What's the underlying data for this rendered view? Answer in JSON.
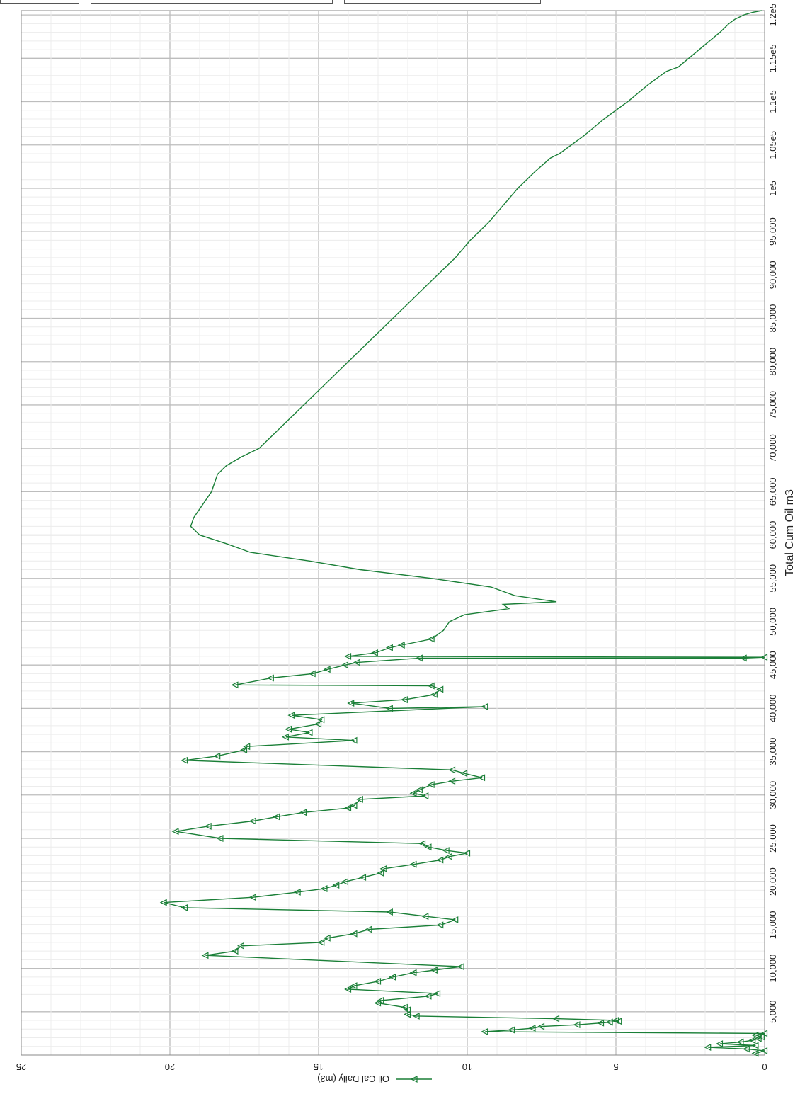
{
  "chart_data": {
    "type": "line",
    "orientation": "rotated-90",
    "xlabel": "Total Cum Oil m3",
    "ylabel": "",
    "xlim": [
      0,
      120500
    ],
    "ylim": [
      0,
      25
    ],
    "x_ticks": [
      "5,000",
      "10,000",
      "15,000",
      "20,000",
      "25,000",
      "30,000",
      "35,000",
      "40,000",
      "45,000",
      "50,000",
      "55,000",
      "60,000",
      "65,000",
      "70,000",
      "75,000",
      "80,000",
      "85,000",
      "90,000",
      "95,000",
      "1e5",
      "1.05e5",
      "1.1e5",
      "1.15e5",
      "1.2e5"
    ],
    "y_ticks": [
      "0",
      "5",
      "10",
      "15",
      "20",
      "25"
    ],
    "grid": true,
    "legend": "bottom",
    "series": [
      {
        "name": "Oil Cal Daily (m3)",
        "color": "#1a7f37",
        "marker": "triangle",
        "points": [
          [
            200,
            0.3
          ],
          [
            500,
            0.0
          ],
          [
            700,
            0.6
          ],
          [
            900,
            1.9
          ],
          [
            1100,
            0.3
          ],
          [
            1300,
            1.5
          ],
          [
            1500,
            0.8
          ],
          [
            1700,
            0.4
          ],
          [
            1900,
            0.2
          ],
          [
            2100,
            0.1
          ],
          [
            2300,
            0.3
          ],
          [
            2500,
            0.0
          ],
          [
            2700,
            9.4
          ],
          [
            2900,
            8.5
          ],
          [
            3100,
            7.8
          ],
          [
            3300,
            7.5
          ],
          [
            3500,
            6.3
          ],
          [
            3700,
            5.5
          ],
          [
            3800,
            5.2
          ],
          [
            3900,
            4.9
          ],
          [
            4000,
            5.0
          ],
          [
            4200,
            7.0
          ],
          [
            4500,
            11.7
          ],
          [
            4700,
            12.0
          ],
          [
            5200,
            12.0
          ],
          [
            5500,
            12.1
          ],
          [
            6000,
            13.0
          ],
          [
            6300,
            12.9
          ],
          [
            6800,
            11.3
          ],
          [
            7100,
            11.0
          ],
          [
            7600,
            14.0
          ],
          [
            8000,
            13.8
          ],
          [
            8500,
            13.0
          ],
          [
            9000,
            12.5
          ],
          [
            9500,
            11.8
          ],
          [
            9800,
            11.1
          ],
          [
            10200,
            10.2
          ],
          [
            11500,
            18.8
          ],
          [
            12000,
            17.8
          ],
          [
            12600,
            17.6
          ],
          [
            13000,
            14.9
          ],
          [
            13500,
            14.7
          ],
          [
            14000,
            13.8
          ],
          [
            14500,
            13.3
          ],
          [
            15000,
            10.9
          ],
          [
            15600,
            10.4
          ],
          [
            16000,
            11.4
          ],
          [
            16500,
            12.6
          ],
          [
            17000,
            19.5
          ],
          [
            17600,
            20.2
          ],
          [
            18200,
            17.2
          ],
          [
            18800,
            15.7
          ],
          [
            19200,
            14.8
          ],
          [
            19600,
            14.4
          ],
          [
            20000,
            14.1
          ],
          [
            20500,
            13.5
          ],
          [
            21000,
            12.9
          ],
          [
            21500,
            12.8
          ],
          [
            22000,
            11.8
          ],
          [
            22500,
            10.9
          ],
          [
            22900,
            10.6
          ],
          [
            23300,
            10.0
          ],
          [
            23600,
            10.7
          ],
          [
            24000,
            11.3
          ],
          [
            24400,
            11.5
          ],
          [
            25000,
            18.3
          ],
          [
            25800,
            19.8
          ],
          [
            26400,
            18.7
          ],
          [
            27000,
            17.2
          ],
          [
            27500,
            16.4
          ],
          [
            28000,
            15.5
          ],
          [
            28500,
            14.0
          ],
          [
            28800,
            13.8
          ],
          [
            29500,
            13.6
          ],
          [
            29900,
            11.4
          ],
          [
            30200,
            11.8
          ],
          [
            30600,
            11.6
          ],
          [
            31200,
            11.2
          ],
          [
            31600,
            10.5
          ],
          [
            32000,
            9.5
          ],
          [
            32500,
            10.1
          ],
          [
            32900,
            10.5
          ],
          [
            34000,
            19.5
          ],
          [
            34500,
            18.4
          ],
          [
            35200,
            17.5
          ],
          [
            35600,
            17.4
          ],
          [
            36300,
            13.8
          ],
          [
            36700,
            16.1
          ],
          [
            37200,
            15.3
          ],
          [
            37600,
            16.0
          ],
          [
            38200,
            15.0
          ],
          [
            38700,
            14.9
          ],
          [
            39200,
            15.9
          ],
          [
            40200,
            9.4
          ],
          [
            40000,
            12.6
          ],
          [
            40600,
            13.9
          ],
          [
            41000,
            12.1
          ],
          [
            41600,
            11.1
          ],
          [
            42200,
            10.9
          ],
          [
            42600,
            11.2
          ],
          [
            42700,
            17.8
          ],
          [
            43500,
            16.6
          ],
          [
            44000,
            15.2
          ],
          [
            44500,
            14.7
          ],
          [
            45000,
            14.1
          ],
          [
            45300,
            13.7
          ],
          [
            45800,
            11.6
          ],
          [
            45800,
            0.7
          ],
          [
            45900,
            0.0
          ],
          [
            46000,
            14.0
          ],
          [
            46400,
            13.1
          ],
          [
            47000,
            12.6
          ],
          [
            47300,
            12.2
          ],
          [
            48000,
            11.2
          ],
          [
            49000,
            10.8
          ],
          [
            50000,
            10.6
          ],
          [
            50800,
            10.1
          ],
          [
            51500,
            8.6
          ],
          [
            52000,
            8.8
          ],
          [
            52300,
            7.0
          ],
          [
            53000,
            8.4
          ],
          [
            54000,
            9.2
          ],
          [
            55000,
            11.2
          ],
          [
            56000,
            13.6
          ],
          [
            57000,
            15.3
          ],
          [
            58000,
            17.3
          ],
          [
            59000,
            18.1
          ],
          [
            60000,
            19.0
          ],
          [
            61000,
            19.3
          ],
          [
            62000,
            19.2
          ],
          [
            63000,
            19.0
          ],
          [
            64000,
            18.8
          ],
          [
            65000,
            18.6
          ],
          [
            66000,
            18.5
          ],
          [
            67000,
            18.4
          ],
          [
            68000,
            18.1
          ],
          [
            69000,
            17.6
          ],
          [
            70000,
            17.0
          ],
          [
            72000,
            16.4
          ],
          [
            74000,
            15.8
          ],
          [
            76000,
            15.2
          ],
          [
            78000,
            14.6
          ],
          [
            80000,
            14.0
          ],
          [
            82000,
            13.4
          ],
          [
            84000,
            12.8
          ],
          [
            86000,
            12.2
          ],
          [
            88000,
            11.6
          ],
          [
            90000,
            11.0
          ],
          [
            92000,
            10.4
          ],
          [
            94000,
            9.9
          ],
          [
            96000,
            9.3
          ],
          [
            98000,
            8.8
          ],
          [
            100000,
            8.3
          ],
          [
            102000,
            7.7
          ],
          [
            103500,
            7.2
          ],
          [
            104000,
            6.9
          ],
          [
            106000,
            6.1
          ],
          [
            108000,
            5.4
          ],
          [
            110000,
            4.6
          ],
          [
            112000,
            3.9
          ],
          [
            113500,
            3.3
          ],
          [
            114000,
            2.9
          ],
          [
            116000,
            2.2
          ],
          [
            118000,
            1.5
          ],
          [
            119000,
            1.2
          ],
          [
            119500,
            1.0
          ],
          [
            120000,
            0.7
          ],
          [
            120300,
            0.4
          ],
          [
            120500,
            0.1
          ]
        ]
      }
    ]
  }
}
